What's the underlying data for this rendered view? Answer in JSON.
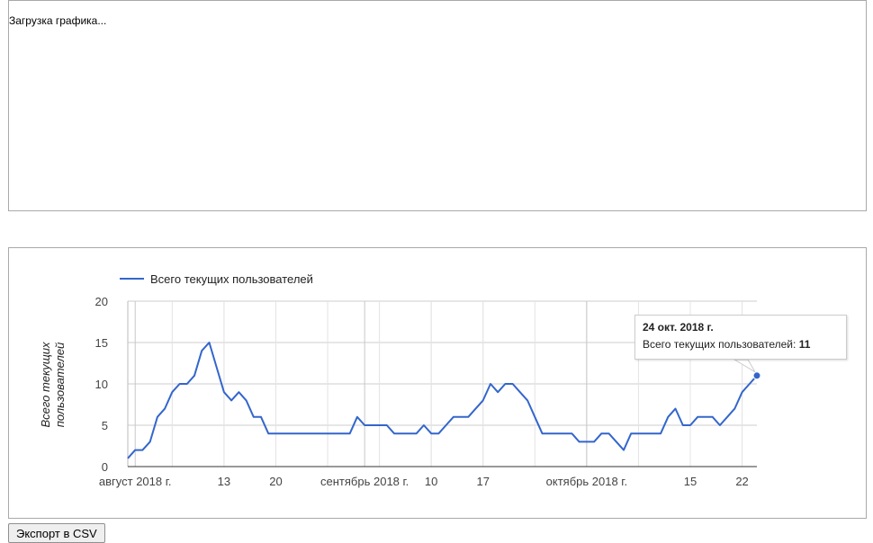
{
  "top_panel": {
    "loading_text": "Загрузка графика..."
  },
  "export_button_label": "Экспорт в CSV",
  "colors": {
    "series": "#3366cc",
    "grid": "#cccccc",
    "panel_border": "#a9a9a9"
  },
  "tooltip": {
    "date": "24 окт. 2018 г.",
    "series_label": "Всего текущих пользователей:",
    "value": "11"
  },
  "chart_data": {
    "type": "line",
    "ylabel": "Всего текущих пользователей",
    "ylim": [
      0,
      20
    ],
    "y_ticks": [
      "0",
      "5",
      "10",
      "15",
      "20"
    ],
    "legend": {
      "position": "top-left",
      "entries": [
        "Всего текущих пользователей"
      ]
    },
    "grid": true,
    "x_ticks": [
      {
        "date": "2018-08-01",
        "label": "август 2018 г."
      },
      {
        "date": "2018-08-13",
        "label": "13"
      },
      {
        "date": "2018-08-20",
        "label": "20"
      },
      {
        "date": "2018-09-01",
        "label": "сентябрь 2018 г."
      },
      {
        "date": "2018-09-10",
        "label": "10"
      },
      {
        "date": "2018-09-17",
        "label": "17"
      },
      {
        "date": "2018-10-01",
        "label": "октябрь 2018 г."
      },
      {
        "date": "2018-10-15",
        "label": "15"
      },
      {
        "date": "2018-10-22",
        "label": "22"
      }
    ],
    "x_range": [
      "2018-07-31",
      "2018-10-24"
    ],
    "series": [
      {
        "name": "Всего текущих пользователей",
        "x": [
          "2018-07-31",
          "2018-08-01",
          "2018-08-02",
          "2018-08-03",
          "2018-08-04",
          "2018-08-05",
          "2018-08-06",
          "2018-08-07",
          "2018-08-08",
          "2018-08-09",
          "2018-08-10",
          "2018-08-11",
          "2018-08-12",
          "2018-08-13",
          "2018-08-14",
          "2018-08-15",
          "2018-08-16",
          "2018-08-17",
          "2018-08-18",
          "2018-08-19",
          "2018-08-20",
          "2018-08-21",
          "2018-08-22",
          "2018-08-23",
          "2018-08-24",
          "2018-08-25",
          "2018-08-26",
          "2018-08-27",
          "2018-08-28",
          "2018-08-29",
          "2018-08-30",
          "2018-08-31",
          "2018-09-01",
          "2018-09-02",
          "2018-09-03",
          "2018-09-04",
          "2018-09-05",
          "2018-09-06",
          "2018-09-07",
          "2018-09-08",
          "2018-09-09",
          "2018-09-10",
          "2018-09-11",
          "2018-09-12",
          "2018-09-13",
          "2018-09-14",
          "2018-09-15",
          "2018-09-16",
          "2018-09-17",
          "2018-09-18",
          "2018-09-19",
          "2018-09-20",
          "2018-09-21",
          "2018-09-22",
          "2018-09-23",
          "2018-09-24",
          "2018-09-25",
          "2018-09-26",
          "2018-09-27",
          "2018-09-28",
          "2018-09-29",
          "2018-09-30",
          "2018-10-01",
          "2018-10-02",
          "2018-10-03",
          "2018-10-04",
          "2018-10-05",
          "2018-10-06",
          "2018-10-07",
          "2018-10-08",
          "2018-10-09",
          "2018-10-10",
          "2018-10-11",
          "2018-10-12",
          "2018-10-13",
          "2018-10-14",
          "2018-10-15",
          "2018-10-16",
          "2018-10-17",
          "2018-10-18",
          "2018-10-19",
          "2018-10-20",
          "2018-10-21",
          "2018-10-22",
          "2018-10-23",
          "2018-10-24"
        ],
        "y": [
          1,
          2,
          2,
          3,
          6,
          7,
          9,
          10,
          10,
          11,
          14,
          15,
          12,
          9,
          8,
          9,
          8,
          6,
          6,
          4,
          4,
          4,
          4,
          4,
          4,
          4,
          4,
          4,
          4,
          4,
          4,
          6,
          5,
          5,
          5,
          5,
          4,
          4,
          4,
          4,
          5,
          4,
          4,
          5,
          6,
          6,
          6,
          7,
          8,
          10,
          9,
          10,
          10,
          9,
          8,
          6,
          4,
          4,
          4,
          4,
          4,
          3,
          3,
          3,
          4,
          4,
          3,
          2,
          4,
          4,
          4,
          4,
          4,
          6,
          7,
          5,
          5,
          6,
          6,
          6,
          5,
          6,
          7,
          9,
          10,
          11
        ]
      }
    ]
  }
}
